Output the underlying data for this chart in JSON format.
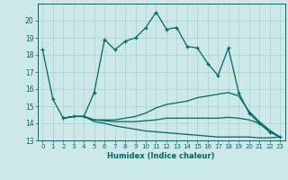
{
  "xlabel": "Humidex (Indice chaleur)",
  "background_color": "#cce8e8",
  "grid_color": "#b0d4cc",
  "line_color": "#006666",
  "xlim": [
    -0.5,
    23.5
  ],
  "ylim": [
    13,
    21
  ],
  "yticks": [
    13,
    14,
    15,
    16,
    17,
    18,
    19,
    20
  ],
  "xticks": [
    0,
    1,
    2,
    3,
    4,
    5,
    6,
    7,
    8,
    9,
    10,
    11,
    12,
    13,
    14,
    15,
    16,
    17,
    18,
    19,
    20,
    21,
    22,
    23
  ],
  "curves": [
    {
      "x": [
        0,
        1,
        2,
        3,
        4,
        5,
        6,
        7,
        8,
        9,
        10,
        11,
        12,
        13,
        14,
        15,
        16,
        17,
        18,
        19,
        20,
        21,
        22,
        23
      ],
      "y": [
        18.3,
        15.4,
        14.3,
        14.4,
        14.4,
        15.8,
        18.9,
        18.3,
        18.8,
        19.0,
        19.6,
        20.5,
        19.5,
        19.6,
        18.5,
        18.4,
        17.5,
        16.8,
        18.4,
        15.8,
        14.6,
        14.0,
        13.5,
        13.2
      ],
      "marker": true
    },
    {
      "x": [
        2,
        3,
        4,
        5,
        6,
        7,
        8,
        9,
        10,
        11,
        12,
        13,
        14,
        15,
        16,
        17,
        18,
        19,
        20,
        21,
        22,
        23
      ],
      "y": [
        14.3,
        14.4,
        14.4,
        14.2,
        14.2,
        14.2,
        14.3,
        14.4,
        14.6,
        14.9,
        15.1,
        15.2,
        15.3,
        15.5,
        15.6,
        15.7,
        15.8,
        15.6,
        14.7,
        14.1,
        13.6,
        13.2
      ],
      "marker": false
    },
    {
      "x": [
        2,
        3,
        4,
        5,
        6,
        7,
        8,
        9,
        10,
        11,
        12,
        13,
        14,
        15,
        16,
        17,
        18,
        19,
        20,
        21,
        22,
        23
      ],
      "y": [
        14.3,
        14.4,
        14.4,
        14.2,
        14.15,
        14.1,
        14.1,
        14.1,
        14.15,
        14.2,
        14.3,
        14.3,
        14.3,
        14.3,
        14.3,
        14.3,
        14.35,
        14.3,
        14.2,
        14.0,
        13.5,
        13.2
      ],
      "marker": false
    },
    {
      "x": [
        2,
        3,
        4,
        5,
        6,
        7,
        8,
        9,
        10,
        11,
        12,
        13,
        14,
        15,
        16,
        17,
        18,
        19,
        20,
        21,
        22,
        23
      ],
      "y": [
        14.3,
        14.4,
        14.4,
        14.1,
        14.0,
        13.85,
        13.75,
        13.65,
        13.55,
        13.5,
        13.45,
        13.4,
        13.35,
        13.3,
        13.25,
        13.2,
        13.2,
        13.2,
        13.2,
        13.15,
        13.15,
        13.2
      ],
      "marker": false
    }
  ]
}
